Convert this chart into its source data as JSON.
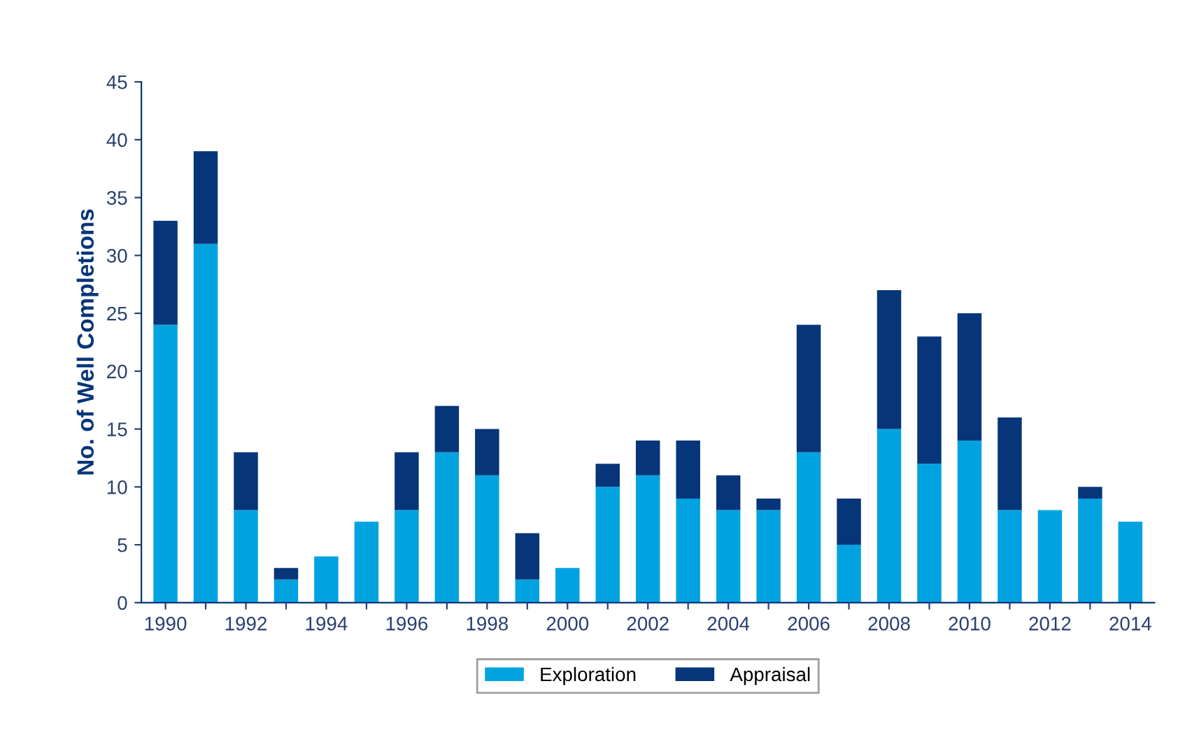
{
  "chart_data": {
    "type": "bar",
    "stacked": true,
    "ylabel": "No. of Well Completions",
    "categories": [
      "1990",
      null,
      "1992",
      null,
      "1994",
      null,
      "1996",
      null,
      "1998",
      null,
      "2000",
      null,
      "2002",
      null,
      "2004",
      null,
      "2006",
      null,
      "2008",
      null,
      "2010",
      null,
      "2012",
      null,
      "2014"
    ],
    "series": [
      {
        "name": "Exploration",
        "color": "#00a3e0",
        "values": [
          24,
          31,
          8,
          2,
          4,
          7,
          8,
          13,
          11,
          2,
          3,
          10,
          11,
          9,
          8,
          8,
          13,
          5,
          15,
          12,
          14,
          8,
          8,
          9,
          7
        ]
      },
      {
        "name": "Appraisal",
        "color": "#06357a",
        "values": [
          9,
          8,
          5,
          1,
          0,
          0,
          5,
          4,
          4,
          4,
          0,
          2,
          3,
          5,
          3,
          1,
          11,
          4,
          12,
          11,
          11,
          8,
          0,
          1,
          0
        ]
      }
    ],
    "ylim": [
      0,
      45
    ],
    "yticks": [
      0,
      5,
      10,
      15,
      20,
      25,
      30,
      35,
      40,
      45
    ],
    "grid": false,
    "legend": "bottom"
  }
}
